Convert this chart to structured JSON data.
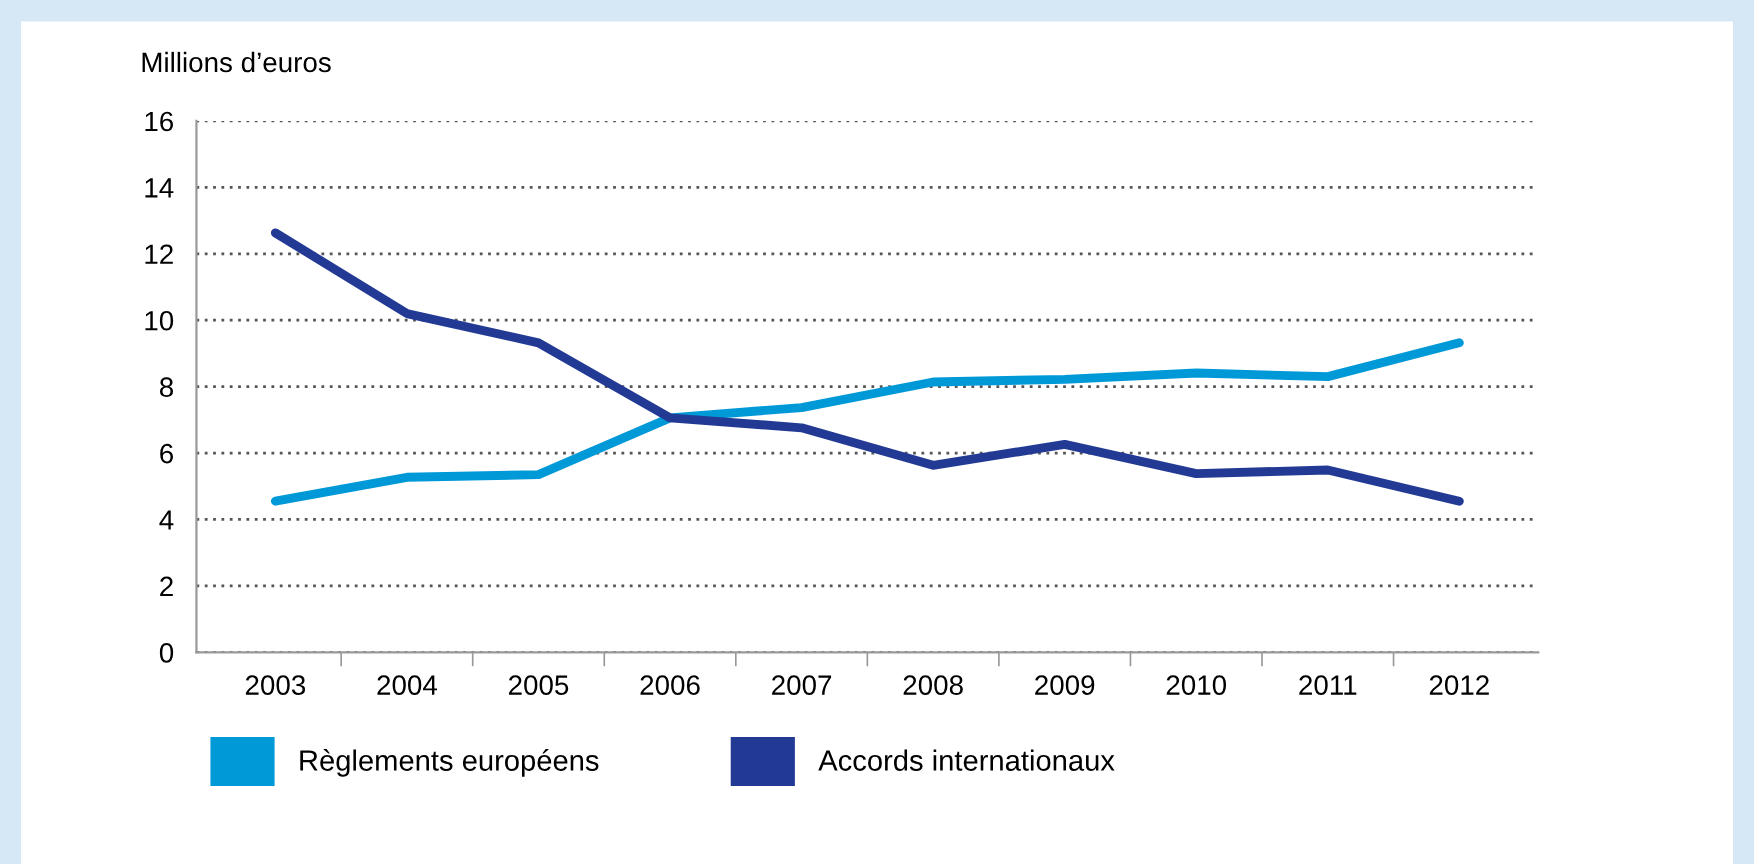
{
  "chart_data": {
    "type": "line",
    "ylabel": "Millions d’euros",
    "categories": [
      "2003",
      "2004",
      "2005",
      "2006",
      "2007",
      "2008",
      "2009",
      "2010",
      "2011",
      "2012"
    ],
    "series": [
      {
        "name": "Règlements européens",
        "color": "#0099d8",
        "values": [
          4.55,
          5.27,
          5.35,
          7.06,
          7.37,
          8.14,
          8.22,
          8.41,
          8.3,
          9.32
        ]
      },
      {
        "name": "Accords internationaux",
        "color": "#233a94",
        "values": [
          12.63,
          10.2,
          9.32,
          7.06,
          6.76,
          5.63,
          6.26,
          5.38,
          5.49,
          4.55
        ]
      }
    ],
    "ylim": [
      0,
      16
    ],
    "yticks": [
      0,
      2,
      4,
      6,
      8,
      10,
      12,
      14,
      16
    ],
    "grid": "y",
    "legend": "bottom",
    "marker": "none",
    "line_style": "solid"
  }
}
